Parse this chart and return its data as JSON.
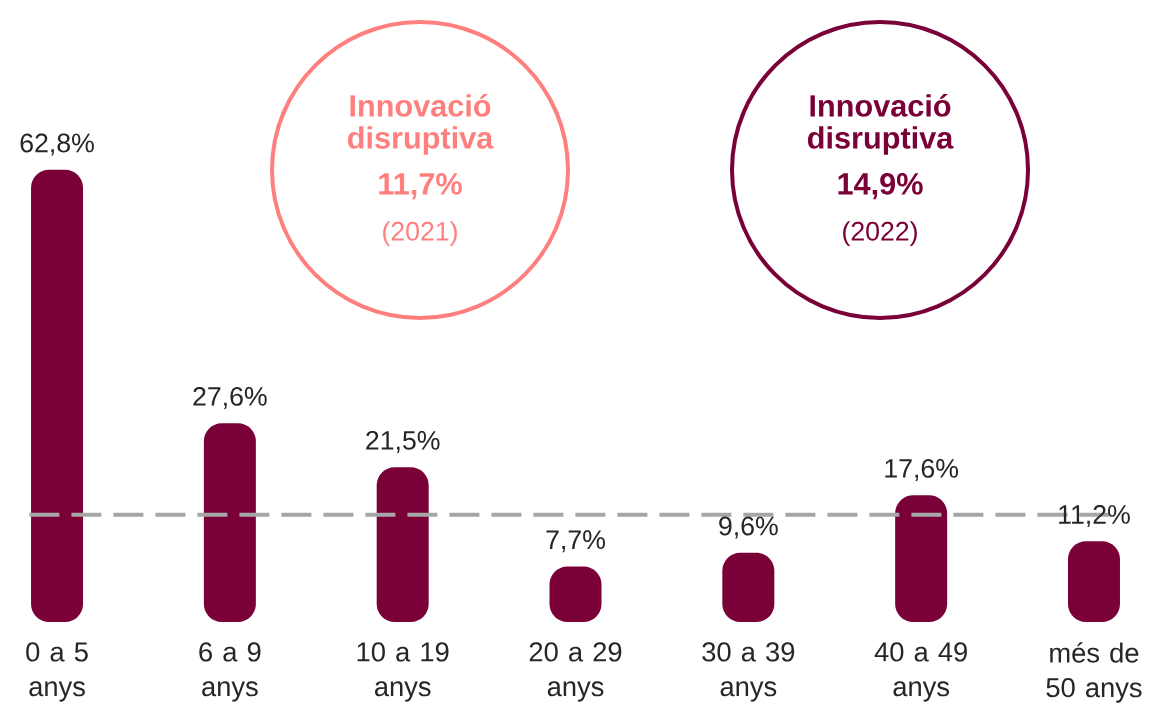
{
  "chart_data": {
    "type": "bar",
    "categories": [
      "0 a 5 anys",
      "6 a 9 anys",
      "10 a 19 anys",
      "20 a 29 anys",
      "30 a 39 anys",
      "40 a 49 anys",
      "més de 50 anys"
    ],
    "values": [
      62.8,
      27.6,
      21.5,
      7.7,
      9.6,
      17.6,
      11.2
    ],
    "value_labels": [
      "62,8%",
      "27,6%",
      "21,5%",
      "7,7%",
      "9,6%",
      "17,6%",
      "11,2%"
    ],
    "color": "#7a0038",
    "ref_lines": [
      {
        "axis": "y",
        "value": 14.9,
        "color": "#a6a6a6",
        "line_style": "dashed"
      }
    ],
    "annotations": [
      "Innovació disruptiva",
      "11,7%",
      "(2021)",
      "Innovació disruptiva",
      "14,9%",
      "(2022)"
    ]
  }
}
